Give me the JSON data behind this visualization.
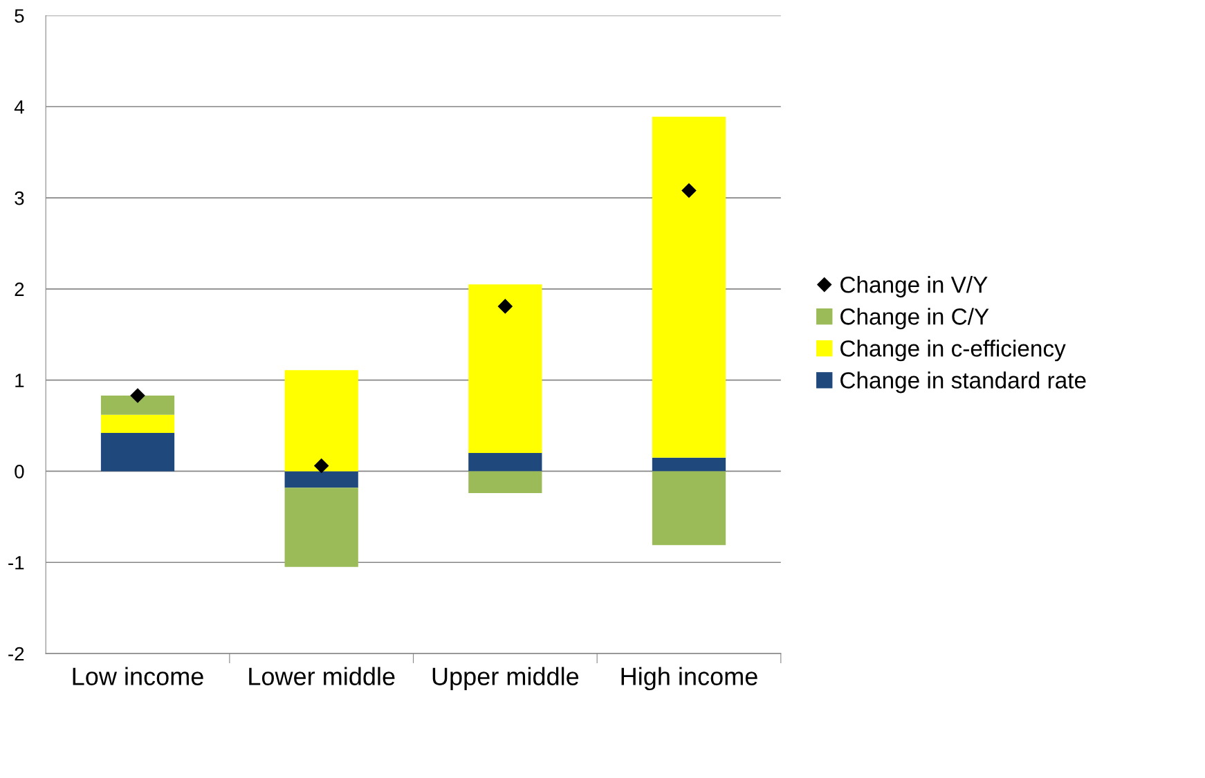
{
  "chart_data": {
    "type": "bar",
    "stacked": true,
    "categories": [
      "Low income",
      "Lower middle",
      "Upper middle",
      "High income"
    ],
    "series": [
      {
        "name": "Change in standard rate",
        "color": "#1f497d",
        "values": [
          0.42,
          -0.18,
          0.2,
          0.15
        ]
      },
      {
        "name": "Change in c-efficiency",
        "color": "#ffff00",
        "values": [
          0.2,
          1.11,
          1.85,
          3.74
        ]
      },
      {
        "name": "Change in C/Y",
        "color": "#9bbb59",
        "values": [
          0.21,
          -0.87,
          -0.24,
          -0.81
        ]
      },
      {
        "name": "Change in V/Y",
        "color": "#000000",
        "type": "scatter",
        "marker": "diamond",
        "values": [
          0.83,
          0.06,
          1.81,
          3.08
        ]
      }
    ],
    "ylim": [
      -2,
      5
    ],
    "yticks": [
      -2,
      -1,
      0,
      1,
      2,
      3,
      4,
      5
    ],
    "grid": "y",
    "legend": "right"
  }
}
